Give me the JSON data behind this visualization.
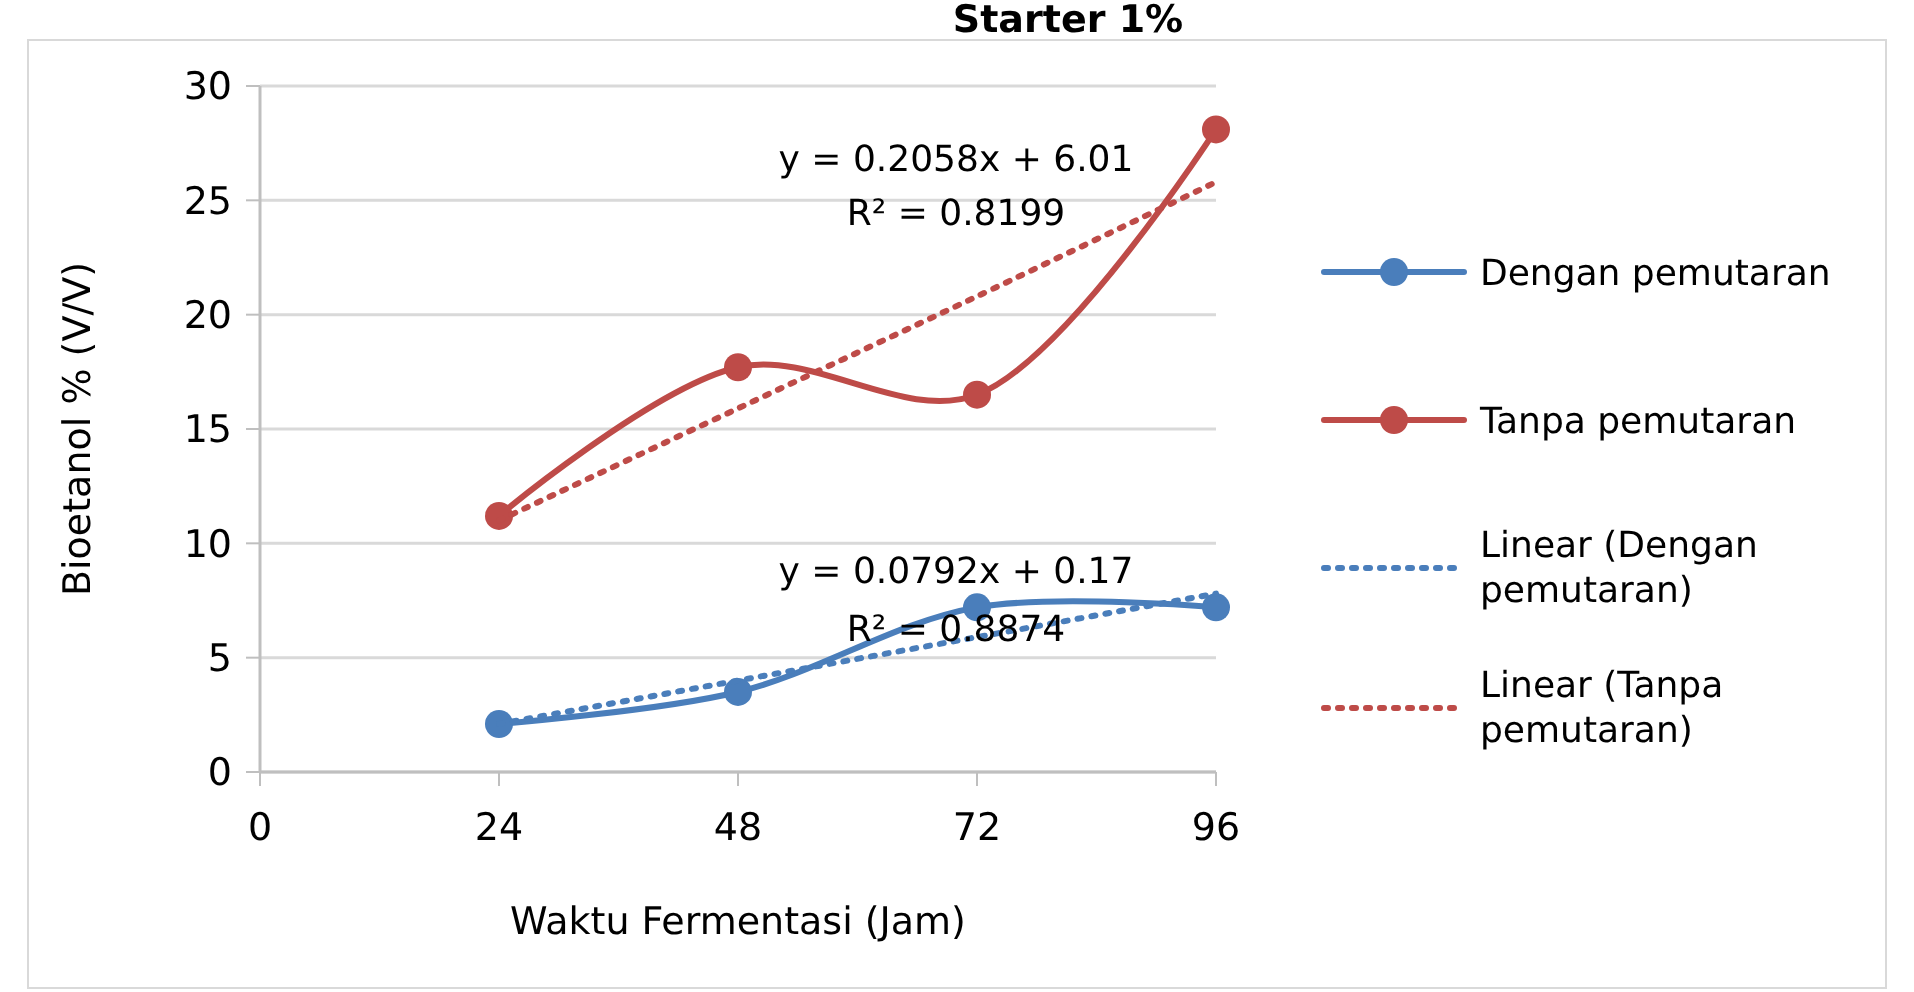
{
  "chart_data": {
    "type": "line",
    "title": "Starter 1%",
    "xlabel": "Waktu Fermentasi (Jam)",
    "ylabel": "Bioetanol % (V/V)",
    "x": [
      24,
      48,
      72,
      96
    ],
    "xlim": [
      0,
      96
    ],
    "xticks": [
      0,
      24,
      48,
      72,
      96
    ],
    "ylim": [
      0,
      30
    ],
    "yticks": [
      0,
      5,
      10,
      15,
      20,
      25,
      30
    ],
    "grid": "y",
    "legend": "right",
    "marker": "circle",
    "line_style": "solid",
    "series": [
      {
        "name": "Dengan pemutaran",
        "color": "#4a7ebb",
        "values": [
          2.1,
          3.5,
          7.2,
          7.2
        ]
      },
      {
        "name": "Tanpa pemutaran",
        "color": "#be4b48",
        "values": [
          11.2,
          17.7,
          16.5,
          28.1
        ]
      },
      {
        "name": "Linear (Dengan pemutaran)",
        "color": "#4a7ebb",
        "values": [
          2.1,
          4.0,
          5.9,
          7.8
        ],
        "marker": "none",
        "line_style": "dotted"
      },
      {
        "name": "Linear (Tanpa pemutaran)",
        "color": "#be4b48",
        "values": [
          11.0,
          15.9,
          20.8,
          25.8
        ],
        "marker": "none",
        "line_style": "dotted"
      }
    ],
    "annotations": [
      "y = 0.2058x + 6.01",
      "R² = 0.8199",
      "y = 0.0792x + 0.17",
      "R² = 0.8874"
    ]
  }
}
